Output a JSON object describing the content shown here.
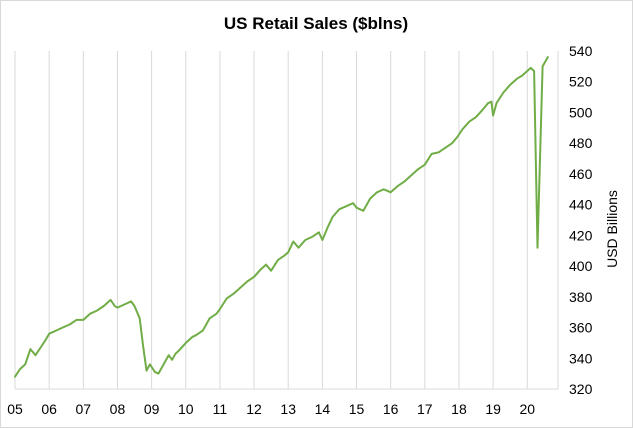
{
  "chart_data": {
    "type": "line",
    "title": "US Retail Sales ($blns)",
    "xlabel": "",
    "ylabel": "USD Billions",
    "y_axis_side": "right",
    "ylim": [
      320,
      540
    ],
    "yticks": [
      320,
      340,
      360,
      380,
      400,
      420,
      440,
      460,
      480,
      500,
      520,
      540
    ],
    "xlim": [
      2005.0,
      2020.9
    ],
    "xticks": [
      {
        "value": 2005,
        "label": "05"
      },
      {
        "value": 2006,
        "label": "06"
      },
      {
        "value": 2007,
        "label": "07"
      },
      {
        "value": 2008,
        "label": "08"
      },
      {
        "value": 2009,
        "label": "09"
      },
      {
        "value": 2010,
        "label": "10"
      },
      {
        "value": 2011,
        "label": "11"
      },
      {
        "value": 2012,
        "label": "12"
      },
      {
        "value": 2013,
        "label": "13"
      },
      {
        "value": 2014,
        "label": "14"
      },
      {
        "value": 2015,
        "label": "15"
      },
      {
        "value": 2016,
        "label": "16"
      },
      {
        "value": 2017,
        "label": "17"
      },
      {
        "value": 2018,
        "label": "18"
      },
      {
        "value": 2019,
        "label": "19"
      },
      {
        "value": 2020,
        "label": "20"
      }
    ],
    "grid": "vertical",
    "legend": "none",
    "series": [
      {
        "color": "#70ad47",
        "x": [
          2005.0,
          2005.15,
          2005.3,
          2005.45,
          2005.6,
          2005.75,
          2005.9,
          2006.0,
          2006.2,
          2006.4,
          2006.6,
          2006.8,
          2007.0,
          2007.2,
          2007.4,
          2007.6,
          2007.8,
          2007.92,
          2008.0,
          2008.2,
          2008.4,
          2008.5,
          2008.65,
          2008.75,
          2008.85,
          2008.95,
          2009.1,
          2009.2,
          2009.35,
          2009.5,
          2009.6,
          2009.7,
          2009.8,
          2010.0,
          2010.2,
          2010.3,
          2010.5,
          2010.7,
          2010.9,
          2011.0,
          2011.2,
          2011.4,
          2011.6,
          2011.8,
          2012.0,
          2012.2,
          2012.35,
          2012.5,
          2012.7,
          2012.9,
          2013.0,
          2013.15,
          2013.3,
          2013.5,
          2013.7,
          2013.9,
          2014.0,
          2014.15,
          2014.3,
          2014.5,
          2014.7,
          2014.9,
          2015.0,
          2015.2,
          2015.4,
          2015.6,
          2015.8,
          2016.0,
          2016.2,
          2016.4,
          2016.6,
          2016.8,
          2017.0,
          2017.2,
          2017.4,
          2017.6,
          2017.8,
          2017.95,
          2018.1,
          2018.3,
          2018.5,
          2018.7,
          2018.85,
          2018.95,
          2019.0,
          2019.1,
          2019.3,
          2019.5,
          2019.7,
          2019.85,
          2020.0,
          2020.1,
          2020.2,
          2020.3,
          2020.45,
          2020.6
        ],
        "values": [
          328,
          333,
          336,
          346,
          342,
          347,
          352,
          356,
          358,
          360,
          362,
          365,
          365,
          369,
          371,
          374,
          378,
          374,
          373,
          375,
          377,
          374,
          366,
          348,
          332,
          336,
          331,
          330,
          336,
          342,
          339,
          343,
          345,
          350,
          354,
          355,
          358,
          366,
          369,
          372,
          379,
          382,
          386,
          390,
          393,
          398,
          401,
          397,
          404,
          407,
          409,
          416,
          412,
          417,
          419,
          422,
          417,
          425,
          432,
          437,
          439,
          441,
          438,
          436,
          444,
          448,
          450,
          448,
          452,
          455,
          459,
          463,
          466,
          473,
          474,
          477,
          480,
          484,
          489,
          494,
          497,
          502,
          506,
          507,
          498,
          506,
          513,
          518,
          522,
          524,
          527,
          529,
          527,
          412,
          530,
          536
        ]
      }
    ]
  }
}
